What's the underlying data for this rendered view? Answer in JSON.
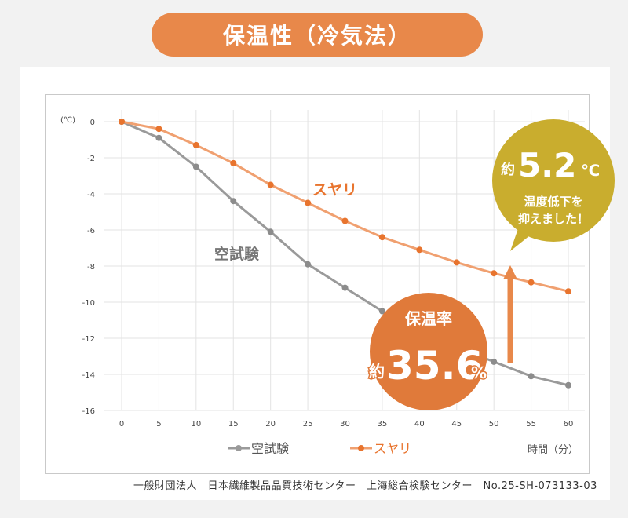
{
  "title": "保温性（冷気法）",
  "footer": "一般財団法人　日本繊維製品品質技術センター　上海総合検験センター　No.25-SH-073133-03",
  "colors": {
    "accent": "#e8884a",
    "gray_series": "#9a9a9a",
    "orange_series": "#f0a070",
    "callout_gold": "#c9ad2e",
    "callout_orange": "#e07a3a"
  },
  "callouts": {
    "rate_title": "保温率",
    "rate_prefix": "約",
    "rate_value": "35.6",
    "rate_unit": "%",
    "temp_prefix": "約",
    "temp_value": "5.2",
    "temp_unit": "℃",
    "temp_line1": "温度低下を",
    "temp_line2": "抑えました！"
  },
  "chart_data": {
    "type": "line",
    "x": [
      0,
      5,
      10,
      15,
      20,
      25,
      30,
      35,
      40,
      45,
      50,
      55,
      60
    ],
    "series": [
      {
        "name": "空試験",
        "values": [
          0,
          -0.9,
          -2.5,
          -4.4,
          -6.1,
          -7.9,
          -9.2,
          -10.5,
          -11.5,
          -12.5,
          -13.3,
          -14.1,
          -14.6
        ],
        "color": "#9a9a9a"
      },
      {
        "name": "スヤリ",
        "values": [
          0,
          -0.4,
          -1.3,
          -2.3,
          -3.5,
          -4.5,
          -5.5,
          -6.4,
          -7.1,
          -7.8,
          -8.4,
          -8.9,
          -9.4
        ],
        "color": "#f0a070"
      }
    ],
    "xticks": [
      "0",
      "5",
      "10",
      "15",
      "20",
      "25",
      "30",
      "35",
      "40",
      "45",
      "50",
      "55",
      "60"
    ],
    "yticks": [
      "0",
      "-2",
      "-4",
      "-6",
      "-8",
      "-10",
      "-12",
      "-14",
      "-16"
    ],
    "ylim": [
      -16,
      0
    ],
    "xlim": [
      0,
      60
    ],
    "ylabel": "(℃)",
    "xlabel": "時間（分）",
    "grid": true,
    "series_labels": {
      "blank": "空試験",
      "suyari": "スヤリ"
    },
    "legend": {
      "placement": "bottom",
      "items": [
        "空試験",
        "スヤリ"
      ]
    }
  }
}
